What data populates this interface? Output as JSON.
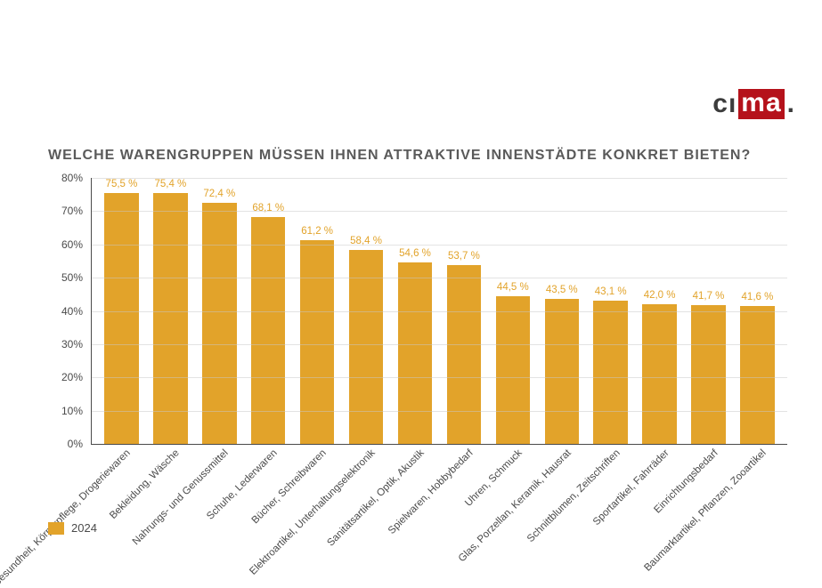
{
  "logo": {
    "ci": "cı",
    "ma": "ma",
    "dot": "."
  },
  "chart": {
    "type": "bar",
    "title": "WELCHE WARENGRUPPEN MÜSSEN IHNEN ATTRAKTIVE INNENSTÄDTE KONKRET BIETEN?",
    "title_fontsize": 16,
    "title_color": "#5a5a5a",
    "bar_color": "#e2a32a",
    "value_label_color": "#e2a32a",
    "axis_color": "#4a4a4a",
    "grid_color": "#c8c8c8",
    "background_color": "#ffffff",
    "label_fontsize": 12,
    "value_fontsize": 11.5,
    "ylim": [
      0,
      80
    ],
    "ytick_step": 10,
    "ytick_suffix": "%",
    "value_suffix": " %",
    "decimal_separator": ",",
    "bar_width": 0.7,
    "xlabel_rotation_deg": -45,
    "categories": [
      "Gesundheit, Körperpflege, Drogeriewaren",
      "Bekleidung, Wäsche",
      "Nahrungs- und Genussmittel",
      "Schuhe, Lederwaren",
      "Bücher, Schreibwaren",
      "Elektroartikel, Unterhaltungselektronik",
      "Sanitätsartikel, Optik, Akustik",
      "Spielwaren, Hobbybedarf",
      "Uhren, Schmuck",
      "Glas, Porzellan, Keramik, Hausrat",
      "Schnittblumen, Zeitschriften",
      "Sportartikel, Fahrräder",
      "Einrichtungsbedarf",
      "Baumarktartikel, Pflanzen, Zooartikel"
    ],
    "values": [
      75.5,
      75.4,
      72.4,
      68.1,
      61.2,
      58.4,
      54.6,
      53.7,
      44.5,
      43.5,
      43.1,
      42.0,
      41.7,
      41.6
    ],
    "legend": {
      "label": "2024",
      "swatch_color": "#e2a32a"
    }
  }
}
